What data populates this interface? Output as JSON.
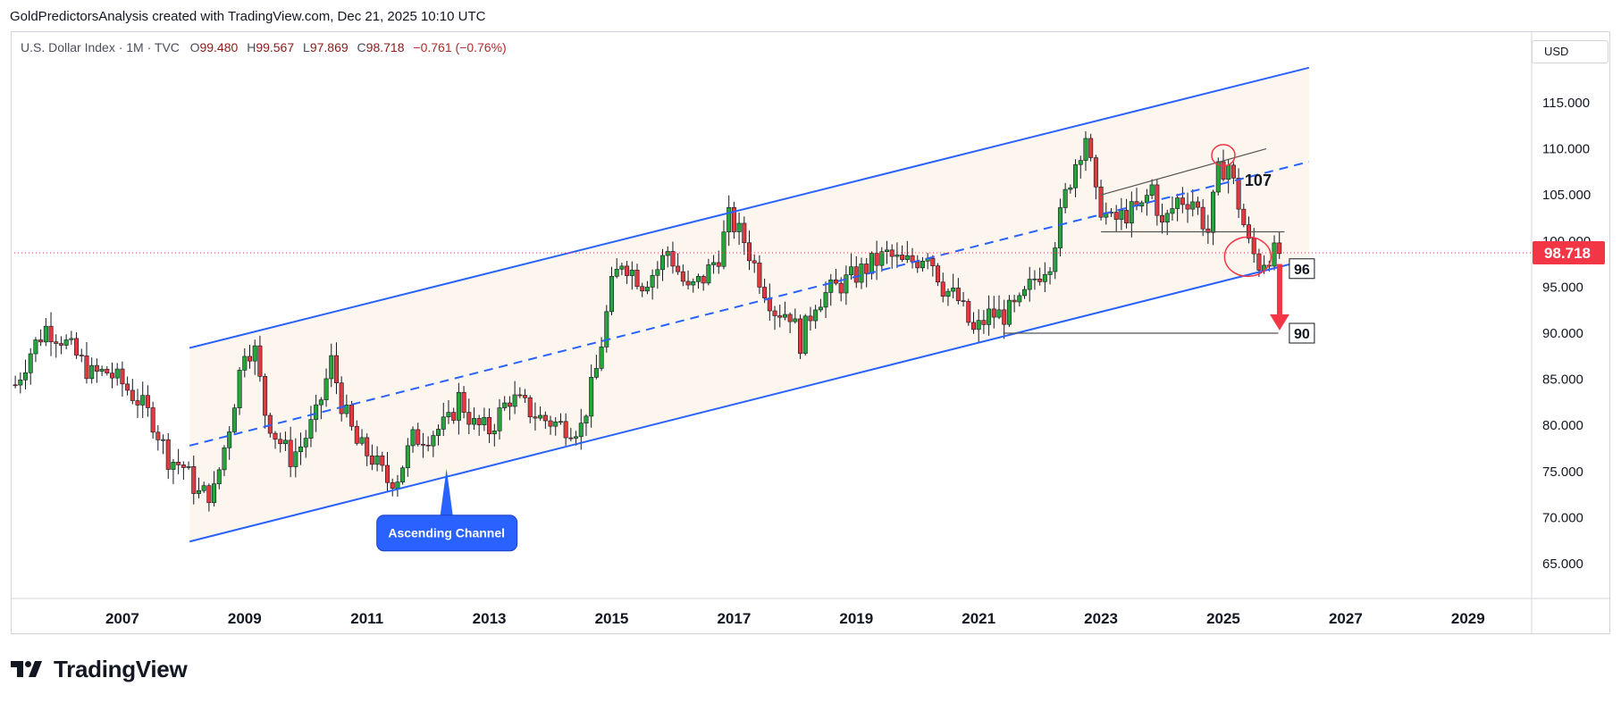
{
  "header": {
    "title": "GoldPredictorsAnalysis created with TradingView.com, Dec 21, 2025 10:10 UTC"
  },
  "legend": {
    "symbol": "U.S. Dollar Index · 1M · TVC",
    "open_label": "O",
    "open": "99.480",
    "high_label": "H",
    "high": "99.567",
    "low_label": "L",
    "low": "97.869",
    "close_label": "C",
    "close": "98.718",
    "change": "−0.761 (−0.76%)"
  },
  "currency_button": "USD",
  "brand": {
    "name": "TradingView",
    "logo_icon": "tradingview-logo-icon"
  },
  "colors": {
    "up": "#26a63a",
    "down": "#e03a3e",
    "channel": "#2962ff",
    "channel_fill": "#fdf6ee",
    "price_tag": "#f23645",
    "arrow": "#f23645"
  },
  "chart_data": {
    "type": "candlestick",
    "title": "U.S. Dollar Index · 1M · TVC",
    "x_ticks": [
      "2007",
      "2009",
      "2011",
      "2013",
      "2015",
      "2017",
      "2019",
      "2021",
      "2023",
      "2025",
      "2027",
      "2029"
    ],
    "y_ticks": [
      "65.000",
      "70.000",
      "75.000",
      "80.000",
      "85.000",
      "90.000",
      "95.000",
      "100.000",
      "105.000",
      "110.000",
      "115.000"
    ],
    "x_range": [
      2005.2,
      2029.5
    ],
    "y_range": [
      62.0,
      120.0
    ],
    "last_price": {
      "value": 98.718,
      "label": "98.718"
    },
    "annotations": {
      "channel_label": "Ascending Channel",
      "level_107": "107",
      "level_96": "96",
      "level_90": "90"
    },
    "channel": {
      "upper": [
        [
          2008.1,
          88.4
        ],
        [
          2026.4,
          118.8
        ]
      ],
      "middle": [
        [
          2008.1,
          77.8
        ],
        [
          2026.4,
          108.6
        ]
      ],
      "lower": [
        [
          2008.1,
          67.4
        ],
        [
          2026.4,
          98.0
        ]
      ]
    },
    "monthly_closes": [
      [
        2005.25,
        84.4
      ],
      [
        2005.5,
        88.0
      ],
      [
        2005.75,
        90.6
      ],
      [
        2006.0,
        89.5
      ],
      [
        2006.25,
        87.5
      ],
      [
        2006.5,
        85.5
      ],
      [
        2006.75,
        85.8
      ],
      [
        2007.0,
        84.5
      ],
      [
        2007.25,
        82.8
      ],
      [
        2007.5,
        80.5
      ],
      [
        2007.75,
        76.5
      ],
      [
        2008.0,
        75.5
      ],
      [
        2008.25,
        72.5
      ],
      [
        2008.5,
        72.8
      ],
      [
        2008.75,
        80.0
      ],
      [
        2009.0,
        88.5
      ],
      [
        2009.17,
        88.0
      ],
      [
        2009.33,
        81.5
      ],
      [
        2009.5,
        79.0
      ],
      [
        2009.75,
        76.5
      ],
      [
        2009.92,
        77.8
      ],
      [
        2010.17,
        81.0
      ],
      [
        2010.42,
        87.0
      ],
      [
        2010.58,
        82.5
      ],
      [
        2010.83,
        78.0
      ],
      [
        2011.08,
        76.5
      ],
      [
        2011.33,
        74.0
      ],
      [
        2011.5,
        74.5
      ],
      [
        2011.75,
        78.5
      ],
      [
        2012.0,
        79.0
      ],
      [
        2012.33,
        80.2
      ],
      [
        2012.5,
        83.0
      ],
      [
        2012.75,
        80.0
      ],
      [
        2013.0,
        79.5
      ],
      [
        2013.33,
        83.0
      ],
      [
        2013.58,
        82.0
      ],
      [
        2013.83,
        80.8
      ],
      [
        2014.17,
        80.0
      ],
      [
        2014.5,
        79.8
      ],
      [
        2014.75,
        86.0
      ],
      [
        2015.0,
        95.0
      ],
      [
        2015.17,
        98.0
      ],
      [
        2015.5,
        95.5
      ],
      [
        2015.75,
        97.0
      ],
      [
        2015.92,
        99.0
      ],
      [
        2016.25,
        94.5
      ],
      [
        2016.5,
        96.0
      ],
      [
        2016.75,
        98.5
      ],
      [
        2016.92,
        102.5
      ],
      [
        2017.17,
        100.0
      ],
      [
        2017.42,
        96.0
      ],
      [
        2017.67,
        92.5
      ],
      [
        2017.92,
        92.2
      ],
      [
        2018.08,
        89.0
      ],
      [
        2018.33,
        93.5
      ],
      [
        2018.67,
        95.0
      ],
      [
        2018.92,
        96.0
      ],
      [
        2019.25,
        97.5
      ],
      [
        2019.5,
        98.5
      ],
      [
        2019.75,
        97.5
      ],
      [
        2020.0,
        98.0
      ],
      [
        2020.17,
        99.0
      ],
      [
        2020.42,
        95.0
      ],
      [
        2020.67,
        93.5
      ],
      [
        2020.92,
        90.0
      ],
      [
        2021.17,
        92.0
      ],
      [
        2021.42,
        92.0
      ],
      [
        2021.67,
        93.0
      ],
      [
        2021.92,
        96.0
      ],
      [
        2022.17,
        98.0
      ],
      [
        2022.42,
        105.0
      ],
      [
        2022.58,
        108.5
      ],
      [
        2022.75,
        111.5
      ],
      [
        2022.92,
        104.5
      ],
      [
        2023.17,
        102.0
      ],
      [
        2023.42,
        103.0
      ],
      [
        2023.67,
        103.5
      ],
      [
        2023.83,
        106.0
      ],
      [
        2024.0,
        101.5
      ],
      [
        2024.25,
        104.5
      ],
      [
        2024.5,
        104.5
      ],
      [
        2024.75,
        101.0
      ],
      [
        2024.92,
        107.5
      ],
      [
        2025.08,
        108.4
      ],
      [
        2025.25,
        104.0
      ],
      [
        2025.42,
        99.5
      ],
      [
        2025.58,
        97.5
      ],
      [
        2025.75,
        98.5
      ],
      [
        2025.92,
        98.7
      ]
    ]
  }
}
